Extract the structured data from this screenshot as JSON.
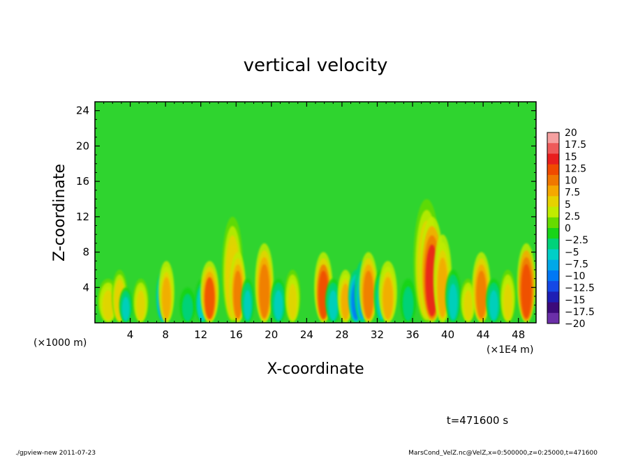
{
  "chart_data": {
    "type": "heatmap",
    "title": "vertical velocity",
    "xlabel": "X-coordinate",
    "ylabel": "Z-coordinate",
    "x_unit_left": "(×1000 m)",
    "x_unit_right": "(×1E4 m)",
    "xlim": [
      0,
      50
    ],
    "ylim": [
      0,
      25
    ],
    "xticks": [
      4,
      8,
      12,
      16,
      20,
      24,
      28,
      32,
      36,
      40,
      44,
      48
    ],
    "yticks": [
      4,
      8,
      12,
      16,
      20,
      24
    ],
    "colorbar": {
      "levels": [
        "20",
        "17.5",
        "15",
        "12.5",
        "10",
        "7.5",
        "5",
        "2.5",
        "0",
        "−2.5",
        "−5",
        "−7.5",
        "−10",
        "−12.5",
        "−15",
        "−17.5",
        "−20"
      ],
      "colors": [
        "#f5a0a0",
        "#ee5a5a",
        "#e81e1e",
        "#f04a00",
        "#f07800",
        "#f5a800",
        "#e6d200",
        "#c0ec00",
        "#66dc00",
        "#18d418",
        "#00d27a",
        "#00cfc7",
        "#00a8e8",
        "#0078f5",
        "#1448e6",
        "#1e1eb4",
        "#3c0a7a",
        "#6b2fa8"
      ]
    },
    "field": {
      "background_color": "#2fd42f",
      "features": [
        {
          "x": 1.5,
          "ztop": 5,
          "w": 0.4,
          "v": 6
        },
        {
          "x": 2.8,
          "ztop": 6,
          "w": 0.3,
          "v": 8
        },
        {
          "x": 3.5,
          "ztop": 4,
          "w": 0.25,
          "v": -6
        },
        {
          "x": 5.2,
          "ztop": 5,
          "w": 0.3,
          "v": 7
        },
        {
          "x": 7.8,
          "ztop": 6,
          "w": 0.3,
          "v": -12
        },
        {
          "x": 8.1,
          "ztop": 7,
          "w": 0.3,
          "v": 10
        },
        {
          "x": 10.5,
          "ztop": 4,
          "w": 0.3,
          "v": -5
        },
        {
          "x": 12.2,
          "ztop": 5,
          "w": 0.3,
          "v": -8
        },
        {
          "x": 13.0,
          "ztop": 7,
          "w": 0.35,
          "v": 14
        },
        {
          "x": 15.6,
          "ztop": 12,
          "w": 0.4,
          "v": 8
        },
        {
          "x": 16.2,
          "ztop": 8,
          "w": 0.3,
          "v": 12
        },
        {
          "x": 17.3,
          "ztop": 5,
          "w": 0.25,
          "v": -6
        },
        {
          "x": 19.2,
          "ztop": 9,
          "w": 0.35,
          "v": 11
        },
        {
          "x": 20.8,
          "ztop": 5,
          "w": 0.3,
          "v": -6
        },
        {
          "x": 22.4,
          "ztop": 6,
          "w": 0.3,
          "v": 7
        },
        {
          "x": 25.9,
          "ztop": 8,
          "w": 0.35,
          "v": 15
        },
        {
          "x": 27.0,
          "ztop": 5,
          "w": 0.3,
          "v": -7
        },
        {
          "x": 28.4,
          "ztop": 6,
          "w": 0.3,
          "v": 9
        },
        {
          "x": 29.6,
          "ztop": 6,
          "w": 0.3,
          "v": -12
        },
        {
          "x": 30.3,
          "ztop": 7,
          "w": 0.3,
          "v": -9
        },
        {
          "x": 31.0,
          "ztop": 8,
          "w": 0.35,
          "v": 11
        },
        {
          "x": 32.5,
          "ztop": 6,
          "w": 0.3,
          "v": -7
        },
        {
          "x": 33.2,
          "ztop": 7,
          "w": 0.35,
          "v": 10
        },
        {
          "x": 35.5,
          "ztop": 5,
          "w": 0.3,
          "v": -5
        },
        {
          "x": 37.6,
          "ztop": 14,
          "w": 0.5,
          "v": 8
        },
        {
          "x": 38.2,
          "ztop": 12,
          "w": 0.45,
          "v": 17
        },
        {
          "x": 39.4,
          "ztop": 10,
          "w": 0.35,
          "v": 10
        },
        {
          "x": 40.6,
          "ztop": 6,
          "w": 0.3,
          "v": -6
        },
        {
          "x": 42.3,
          "ztop": 5,
          "w": 0.3,
          "v": 7
        },
        {
          "x": 43.8,
          "ztop": 8,
          "w": 0.35,
          "v": 13
        },
        {
          "x": 45.2,
          "ztop": 5,
          "w": 0.3,
          "v": -6
        },
        {
          "x": 46.8,
          "ztop": 6,
          "w": 0.3,
          "v": 7
        },
        {
          "x": 48.9,
          "ztop": 9,
          "w": 0.35,
          "v": 16
        }
      ]
    }
  },
  "time_label": "t=471600 s",
  "footer_left": "./gpview-new   2011-07-23",
  "footer_right": "MarsCond_VelZ.nc@VelZ,x=0:500000,z=0:25000,t=471600"
}
